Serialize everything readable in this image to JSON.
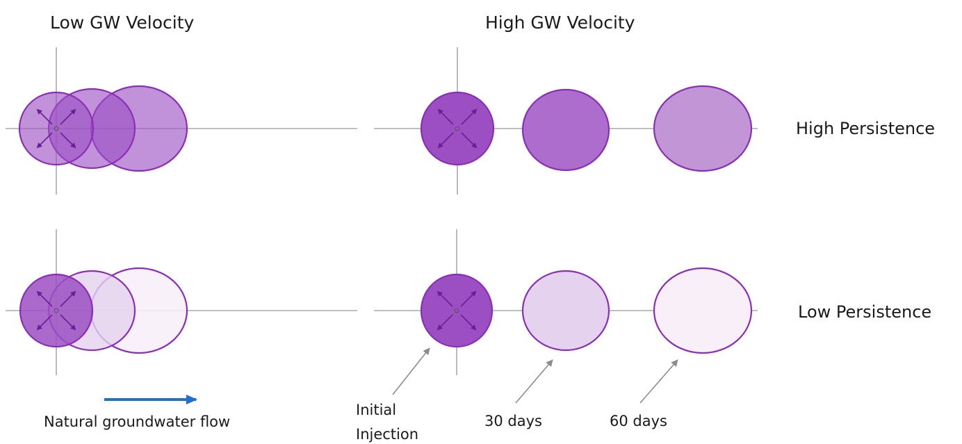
{
  "titles": {
    "low_velocity": "Low GW Velocity",
    "high_velocity": "High GW Velocity"
  },
  "rows": {
    "high_persistence": "High Persistence",
    "low_persistence": "Low Persistence"
  },
  "flow": {
    "label": "Natural groundwater flow",
    "arrow_color": "#1f6fd1"
  },
  "annotations": {
    "initial_line1": "Initial",
    "initial_line2": "Injection",
    "day30": "30 days",
    "day60": "60 days"
  },
  "colors": {
    "outline": "#8a2fb5",
    "fill_strong": "#9b4fc2",
    "fill_high_30": "#ad6dcc",
    "fill_high_60": "#c195d6",
    "fill_low_30": "#e4d2ee",
    "fill_low_60": "#f8eff9"
  }
}
